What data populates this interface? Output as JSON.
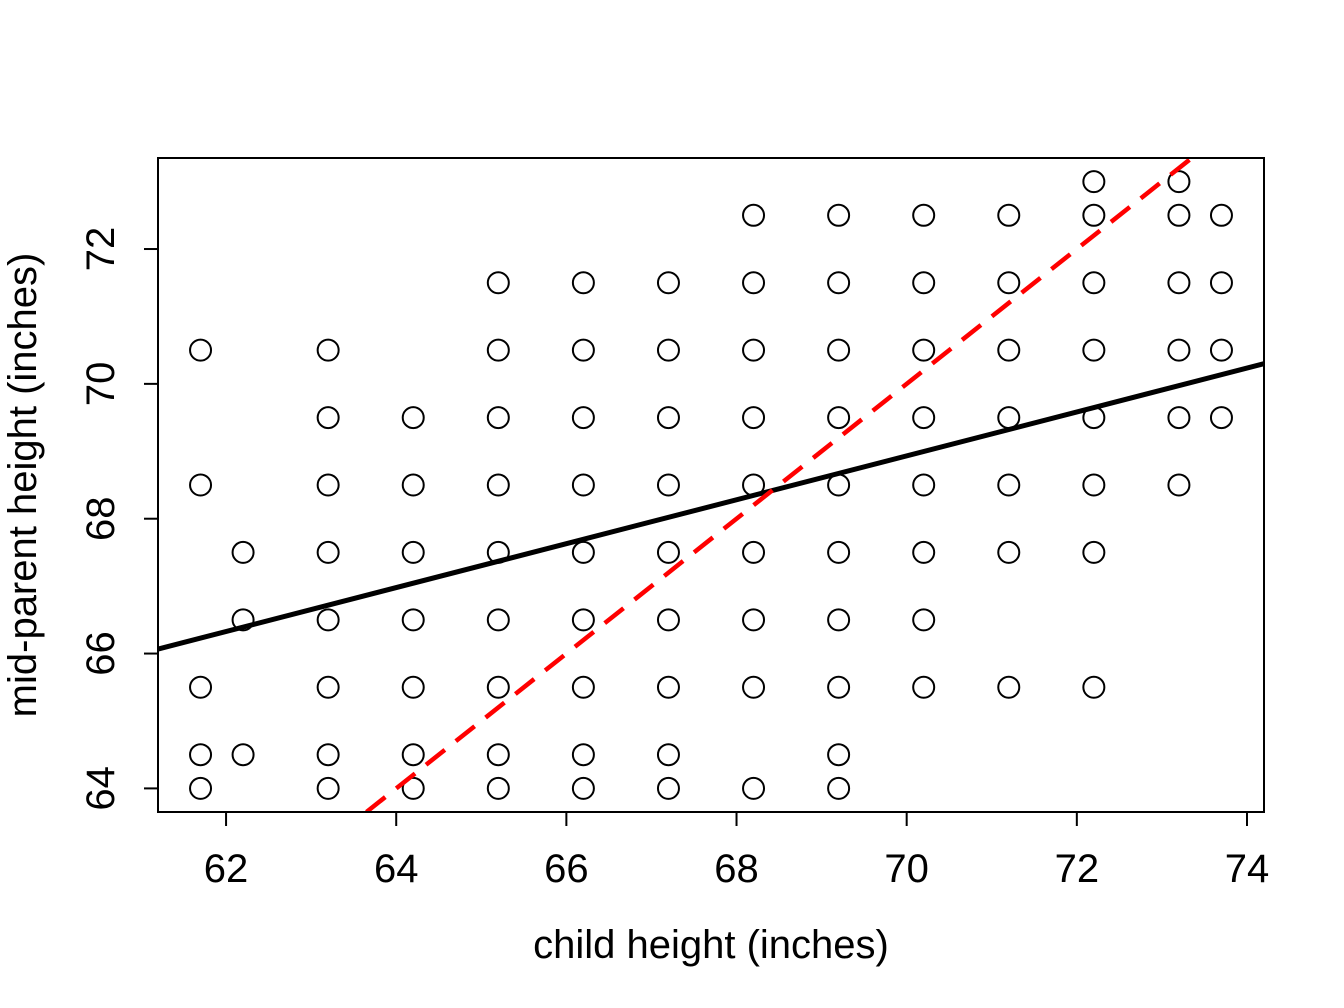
{
  "chart_data": {
    "type": "scatter",
    "title": "",
    "xlabel": "child height (inches)",
    "ylabel": "mid-parent height (inches)",
    "xlim": [
      61.2,
      74.2
    ],
    "ylim": [
      63.65,
      73.35
    ],
    "xticks": [
      62,
      64,
      66,
      68,
      70,
      72,
      74
    ],
    "yticks": [
      64,
      66,
      68,
      70,
      72
    ],
    "grid": false,
    "points": [
      [
        61.7,
        70.5
      ],
      [
        61.7,
        68.5
      ],
      [
        61.7,
        65.5
      ],
      [
        61.7,
        64.5
      ],
      [
        61.7,
        64.0
      ],
      [
        62.2,
        67.5
      ],
      [
        62.2,
        66.5
      ],
      [
        62.2,
        64.5
      ],
      [
        63.2,
        70.5
      ],
      [
        63.2,
        69.5
      ],
      [
        63.2,
        68.5
      ],
      [
        63.2,
        67.5
      ],
      [
        63.2,
        66.5
      ],
      [
        63.2,
        65.5
      ],
      [
        63.2,
        64.5
      ],
      [
        63.2,
        64.0
      ],
      [
        64.2,
        69.5
      ],
      [
        64.2,
        68.5
      ],
      [
        64.2,
        67.5
      ],
      [
        64.2,
        66.5
      ],
      [
        64.2,
        65.5
      ],
      [
        64.2,
        64.5
      ],
      [
        64.2,
        64.0
      ],
      [
        65.2,
        71.5
      ],
      [
        65.2,
        70.5
      ],
      [
        65.2,
        69.5
      ],
      [
        65.2,
        68.5
      ],
      [
        65.2,
        67.5
      ],
      [
        65.2,
        66.5
      ],
      [
        65.2,
        65.5
      ],
      [
        65.2,
        64.5
      ],
      [
        65.2,
        64.0
      ],
      [
        66.2,
        71.5
      ],
      [
        66.2,
        70.5
      ],
      [
        66.2,
        69.5
      ],
      [
        66.2,
        68.5
      ],
      [
        66.2,
        67.5
      ],
      [
        66.2,
        66.5
      ],
      [
        66.2,
        65.5
      ],
      [
        66.2,
        64.5
      ],
      [
        66.2,
        64.0
      ],
      [
        67.2,
        71.5
      ],
      [
        67.2,
        70.5
      ],
      [
        67.2,
        69.5
      ],
      [
        67.2,
        68.5
      ],
      [
        67.2,
        67.5
      ],
      [
        67.2,
        66.5
      ],
      [
        67.2,
        65.5
      ],
      [
        67.2,
        64.5
      ],
      [
        67.2,
        64.0
      ],
      [
        68.2,
        72.5
      ],
      [
        68.2,
        71.5
      ],
      [
        68.2,
        70.5
      ],
      [
        68.2,
        69.5
      ],
      [
        68.2,
        68.5
      ],
      [
        68.2,
        67.5
      ],
      [
        68.2,
        66.5
      ],
      [
        68.2,
        65.5
      ],
      [
        68.2,
        64.0
      ],
      [
        69.2,
        72.5
      ],
      [
        69.2,
        71.5
      ],
      [
        69.2,
        70.5
      ],
      [
        69.2,
        69.5
      ],
      [
        69.2,
        68.5
      ],
      [
        69.2,
        67.5
      ],
      [
        69.2,
        66.5
      ],
      [
        69.2,
        65.5
      ],
      [
        69.2,
        64.5
      ],
      [
        69.2,
        64.0
      ],
      [
        70.2,
        72.5
      ],
      [
        70.2,
        71.5
      ],
      [
        70.2,
        70.5
      ],
      [
        70.2,
        69.5
      ],
      [
        70.2,
        68.5
      ],
      [
        70.2,
        67.5
      ],
      [
        70.2,
        66.5
      ],
      [
        70.2,
        65.5
      ],
      [
        71.2,
        72.5
      ],
      [
        71.2,
        71.5
      ],
      [
        71.2,
        70.5
      ],
      [
        71.2,
        69.5
      ],
      [
        71.2,
        68.5
      ],
      [
        71.2,
        67.5
      ],
      [
        71.2,
        65.5
      ],
      [
        72.2,
        73.0
      ],
      [
        72.2,
        72.5
      ],
      [
        72.2,
        71.5
      ],
      [
        72.2,
        70.5
      ],
      [
        72.2,
        69.5
      ],
      [
        72.2,
        68.5
      ],
      [
        72.2,
        67.5
      ],
      [
        72.2,
        65.5
      ],
      [
        73.2,
        73.0
      ],
      [
        73.2,
        72.5
      ],
      [
        73.2,
        71.5
      ],
      [
        73.2,
        70.5
      ],
      [
        73.2,
        69.5
      ],
      [
        73.2,
        68.5
      ],
      [
        73.7,
        72.5
      ],
      [
        73.7,
        71.5
      ],
      [
        73.7,
        70.5
      ],
      [
        73.7,
        69.5
      ]
    ],
    "lines": [
      {
        "style": "solid",
        "color": "#000000",
        "intercept": 46.14,
        "slope": 0.3256
      },
      {
        "style": "dashed",
        "color": "#ff0000",
        "intercept": 0.0,
        "slope": 1.0
      }
    ],
    "marker": {
      "shape": "open-circle",
      "color": "#000000"
    }
  }
}
